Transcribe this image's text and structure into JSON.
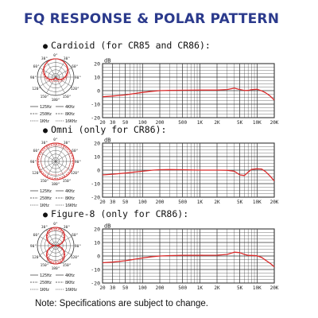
{
  "title": "FQ RESPONSE & POLAR PATTERN",
  "footnote": "Note: Specifications are subject to change.",
  "colors": {
    "title": "#2b3a8c",
    "curve": "#d92b2b",
    "grid": "#333333"
  },
  "polar_legend": [
    {
      "left": "125Hz",
      "right": "4KHz"
    },
    {
      "left": "250Hz",
      "right": "8KHz"
    },
    {
      "left": "1KHz",
      "right": "16KHz"
    }
  ],
  "polar_angles": [
    "0°",
    "30°",
    "60°",
    "90°",
    "120°",
    "150°",
    "180°"
  ],
  "chart_data": [
    {
      "type": "line",
      "label": "Cardioid (for CR85 and CR86):",
      "pattern": "cardioid",
      "ylabel": "dB",
      "x_tick_labels": [
        "20",
        "30",
        "50",
        "100",
        "200",
        "500",
        "1K",
        "2K",
        "5K",
        "10K",
        "20K"
      ],
      "y_tick_labels": [
        "20",
        "10",
        "0",
        "-10",
        "-20"
      ],
      "ylim": [
        -20,
        20
      ],
      "xlim": [
        20,
        20000
      ],
      "x_scale": "log",
      "grid": true,
      "series": [
        {
          "x": [
            20,
            30,
            50,
            100,
            150,
            200,
            300,
            500,
            1000,
            2000,
            3000,
            4000,
            5000,
            6000,
            7000,
            8000,
            10000,
            12000,
            14000,
            17000,
            20000
          ],
          "values": [
            -4.5,
            -4,
            -3.2,
            -1.3,
            -0.5,
            0,
            0.2,
            0.3,
            0.4,
            0.4,
            0.8,
            1.8,
            0.8,
            0.1,
            0.2,
            0.7,
            1,
            -0.1,
            -1.5,
            -4,
            -7
          ]
        }
      ]
    },
    {
      "type": "line",
      "label": "Omni (only for CR86):",
      "pattern": "omni",
      "ylabel": "dB",
      "x_tick_labels": [
        "20",
        "30",
        "50",
        "100",
        "200",
        "500",
        "1K",
        "2K",
        "5K",
        "10K",
        "20K"
      ],
      "y_tick_labels": [
        "20",
        "10",
        "0",
        "-10",
        "-20"
      ],
      "ylim": [
        -20,
        20
      ],
      "xlim": [
        20,
        20000
      ],
      "x_scale": "log",
      "grid": true,
      "series": [
        {
          "x": [
            20,
            30,
            50,
            100,
            150,
            200,
            300,
            500,
            700,
            1000,
            2000,
            3000,
            4000,
            5000,
            6000,
            7000,
            8000,
            10000,
            12000,
            14000,
            17000,
            20000
          ],
          "values": [
            -3.5,
            -3,
            -2.2,
            -0.8,
            0,
            0.3,
            0.4,
            0.3,
            0.1,
            0,
            0,
            -0.1,
            -0.8,
            -3.5,
            -4,
            -1.5,
            0.5,
            1,
            0.8,
            -1,
            -4.5,
            -8
          ]
        }
      ]
    },
    {
      "type": "line",
      "label": "Figure-8 (only for CR86):",
      "pattern": "figure-8",
      "ylabel": "dB",
      "x_tick_labels": [
        "20",
        "30",
        "50",
        "100",
        "200",
        "500",
        "1K",
        "2K",
        "5K",
        "10K",
        "20K"
      ],
      "y_tick_labels": [
        "20",
        "10",
        "0",
        "-10",
        "-20"
      ],
      "ylim": [
        -20,
        20
      ],
      "xlim": [
        20,
        20000
      ],
      "x_scale": "log",
      "grid": true,
      "series": [
        {
          "x": [
            20,
            30,
            50,
            100,
            150,
            200,
            300,
            500,
            1000,
            2000,
            3000,
            4000,
            5000,
            6000,
            7000,
            8000,
            10000,
            12000,
            14000,
            17000,
            20000
          ],
          "values": [
            -5,
            -4.5,
            -3.5,
            -1.5,
            -0.5,
            0,
            0.3,
            0.5,
            0.5,
            0.6,
            1.2,
            2.8,
            2.5,
            1.2,
            0.4,
            0.4,
            0.2,
            -1,
            -3,
            -5.5,
            -8
          ]
        }
      ]
    }
  ]
}
